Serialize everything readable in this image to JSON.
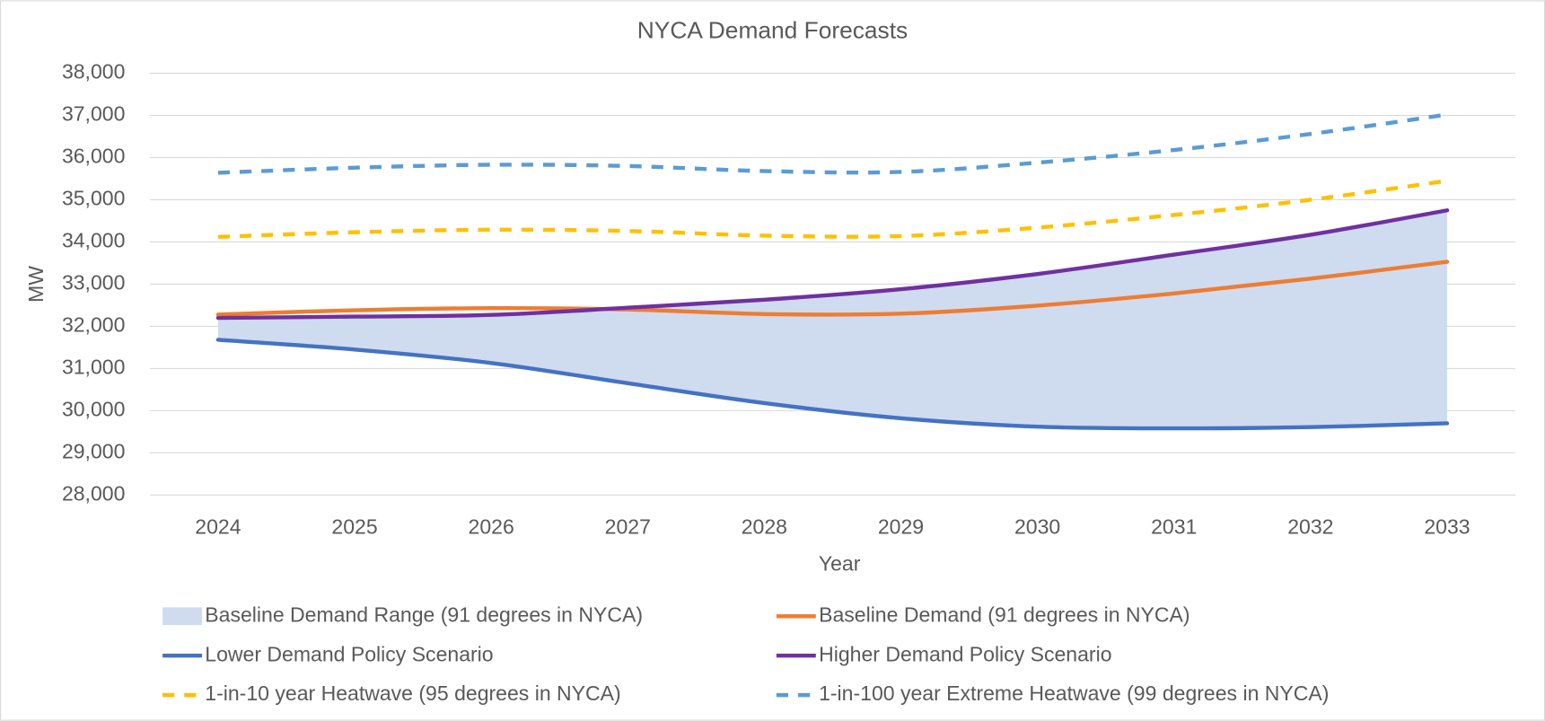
{
  "chart_data": {
    "type": "line",
    "title": "NYCA Demand Forecasts",
    "x_label": "Year",
    "y_label": "MW",
    "categories": [
      "2024",
      "2025",
      "2026",
      "2027",
      "2028",
      "2029",
      "2030",
      "2031",
      "2032",
      "2033"
    ],
    "series": [
      {
        "name": "Baseline Demand Range (91 degrees in NYCA)",
        "color": "#cfdbef",
        "style": "area"
      },
      {
        "name": "Baseline Demand (91 degrees in NYCA)",
        "color": "#ed7d31",
        "style": "solid",
        "values": [
          32280,
          32380,
          32430,
          32400,
          32290,
          32300,
          32490,
          32780,
          33130,
          33530
        ]
      },
      {
        "name": "Lower Demand Policy Scenario",
        "color": "#4472c4",
        "style": "solid",
        "values": [
          31680,
          31450,
          31130,
          30650,
          30180,
          29820,
          29620,
          29580,
          29610,
          29700
        ]
      },
      {
        "name": "Higher Demand Policy Scenario",
        "color": "#7030a0",
        "style": "solid",
        "values": [
          32200,
          32230,
          32270,
          32440,
          32630,
          32880,
          33240,
          33700,
          34170,
          34750
        ]
      },
      {
        "name": "1-in-10 year Heatwave (95 degrees in NYCA)",
        "color": "#ffc000",
        "style": "dashed",
        "values": [
          34120,
          34230,
          34290,
          34260,
          34150,
          34140,
          34340,
          34640,
          35000,
          35450
        ]
      },
      {
        "name": "1-in-100 year Extreme Heatwave (99 degrees in NYCA)",
        "color": "#5b9bd5",
        "style": "dashed",
        "values": [
          35640,
          35760,
          35830,
          35800,
          35680,
          35660,
          35880,
          36180,
          36560,
          37020
        ]
      }
    ],
    "ylim": [
      28000,
      38000
    ],
    "yticks": [
      {
        "value": 28000,
        "label": "28,000"
      },
      {
        "value": 29000,
        "label": "29,000"
      },
      {
        "value": 30000,
        "label": "30,000"
      },
      {
        "value": 31000,
        "label": "31,000"
      },
      {
        "value": 32000,
        "label": "32,000"
      },
      {
        "value": 33000,
        "label": "33,000"
      },
      {
        "value": 34000,
        "label": "34,000"
      },
      {
        "value": 35000,
        "label": "35,000"
      },
      {
        "value": 36000,
        "label": "36,000"
      },
      {
        "value": 37000,
        "label": "37,000"
      },
      {
        "value": 38000,
        "label": "38,000"
      }
    ],
    "grid": true,
    "legend": "bottom"
  }
}
